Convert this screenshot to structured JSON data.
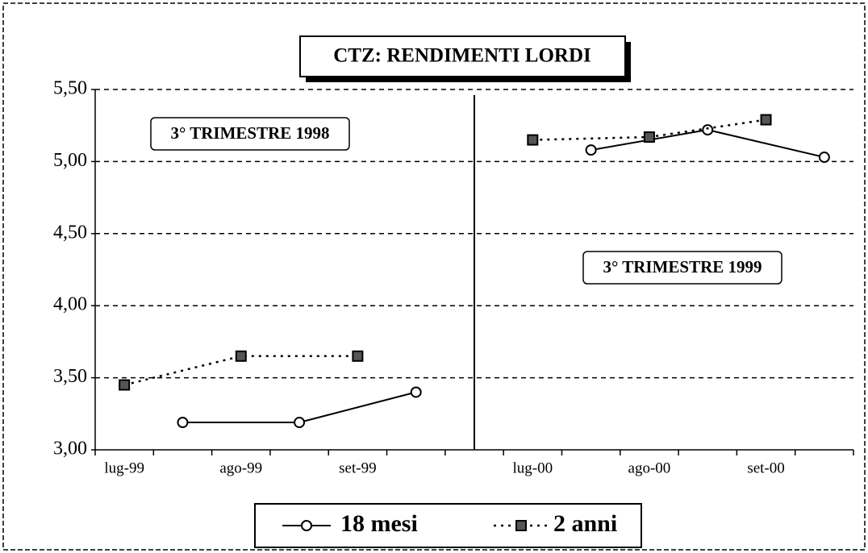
{
  "chart_data": {
    "type": "line",
    "title": "CTZ: RENDIMENTI LORDI",
    "categories": [
      "lug-99",
      "ago-99",
      "set-99",
      "lug-00",
      "ago-00",
      "set-00"
    ],
    "series": [
      {
        "name": "18 mesi",
        "color": "#000000",
        "values": [
          3.19,
          3.19,
          3.4,
          5.08,
          5.22,
          5.03
        ]
      },
      {
        "name": "2 anni",
        "color": "#000000",
        "values": [
          3.45,
          3.65,
          3.65,
          5.15,
          5.17,
          5.29
        ]
      }
    ],
    "annotations": [
      "3° TRIMESTRE 1998",
      "3° TRIMESTRE 1999"
    ],
    "ylim": [
      3.0,
      5.5
    ],
    "yticks": [
      {
        "value": 3.0,
        "label": "3,00"
      },
      {
        "value": 3.5,
        "label": "3,50"
      },
      {
        "value": 4.0,
        "label": "4,00"
      },
      {
        "value": 4.5,
        "label": "4,50"
      },
      {
        "value": 5.0,
        "label": "5,00"
      },
      {
        "value": 5.5,
        "label": "5,50"
      }
    ],
    "grid": true,
    "legend": "bottom"
  }
}
